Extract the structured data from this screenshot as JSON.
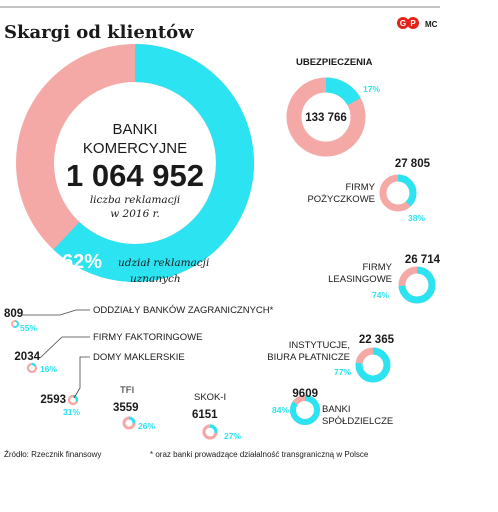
{
  "header": {
    "title": "Skargi od klientów",
    "logo_text": "GP",
    "author": "MC"
  },
  "colors": {
    "cyan": "#2be3f1",
    "pink": "#f4a9a7",
    "text": "#1a1a1a",
    "logo_red": "#e2231a"
  },
  "main": {
    "category_line1": "BANKI",
    "category_line2": "KOMERCYJNE",
    "value_label": "1 064 952",
    "sub_line1": "liczba reklamacji",
    "sub_line2": "w 2016 r.",
    "pct_label": "62%",
    "pct_note1": "udział reklamacji",
    "pct_note2": "uznanych"
  },
  "footer": {
    "source": "Źródło: Rzecznik finansowy",
    "note": "* oraz banki prowadzące działalność transgraniczną w Polsce"
  },
  "chart_data": {
    "type": "donut",
    "measure": "liczba reklamacji w 2016 r. / udział reklamacji uznanych",
    "items": [
      {
        "name": "BANKI KOMERCYJNE",
        "complaints": 1064952,
        "accepted_pct": 62
      },
      {
        "name": "UBEZPIECZENIA",
        "complaints": 133766,
        "accepted_pct": 17,
        "value_label": "133 766",
        "pct_label": "17%"
      },
      {
        "name": "FIRMY POŻYCZKOWE",
        "complaints": 27805,
        "accepted_pct": 38,
        "value_label": "27 805",
        "pct_label": "38%"
      },
      {
        "name": "FIRMY LEASINGOWE",
        "complaints": 26714,
        "accepted_pct": 74,
        "value_label": "26 714",
        "pct_label": "74%"
      },
      {
        "name": "INSTYTUCJE, BIURA PŁATNICZE",
        "complaints": 22365,
        "accepted_pct": 77,
        "value_label": "22 365",
        "pct_label": "77%"
      },
      {
        "name": "BANKI SPÓŁDZIELCZE",
        "complaints": 9609,
        "accepted_pct": 84,
        "value_label": "9609",
        "pct_label": "84%"
      },
      {
        "name": "SKOK-I",
        "complaints": 6151,
        "accepted_pct": 27,
        "value_label": "6151",
        "pct_label": "27%"
      },
      {
        "name": "TFI",
        "complaints": 3559,
        "accepted_pct": 26,
        "value_label": "3559",
        "pct_label": "26%"
      },
      {
        "name": "DOMY MAKLERSKIE",
        "complaints": 2593,
        "accepted_pct": 31,
        "value_label": "2593",
        "pct_label": "31%"
      },
      {
        "name": "FIRMY FAKTORINGOWE",
        "complaints": 2034,
        "accepted_pct": 16,
        "value_label": "2034",
        "pct_label": "16%"
      },
      {
        "name": "ODDZIAŁY BANKÓW ZAGRANICZNYCH*",
        "complaints": 809,
        "accepted_pct": 55,
        "value_label": "809",
        "pct_label": "55%"
      }
    ]
  }
}
